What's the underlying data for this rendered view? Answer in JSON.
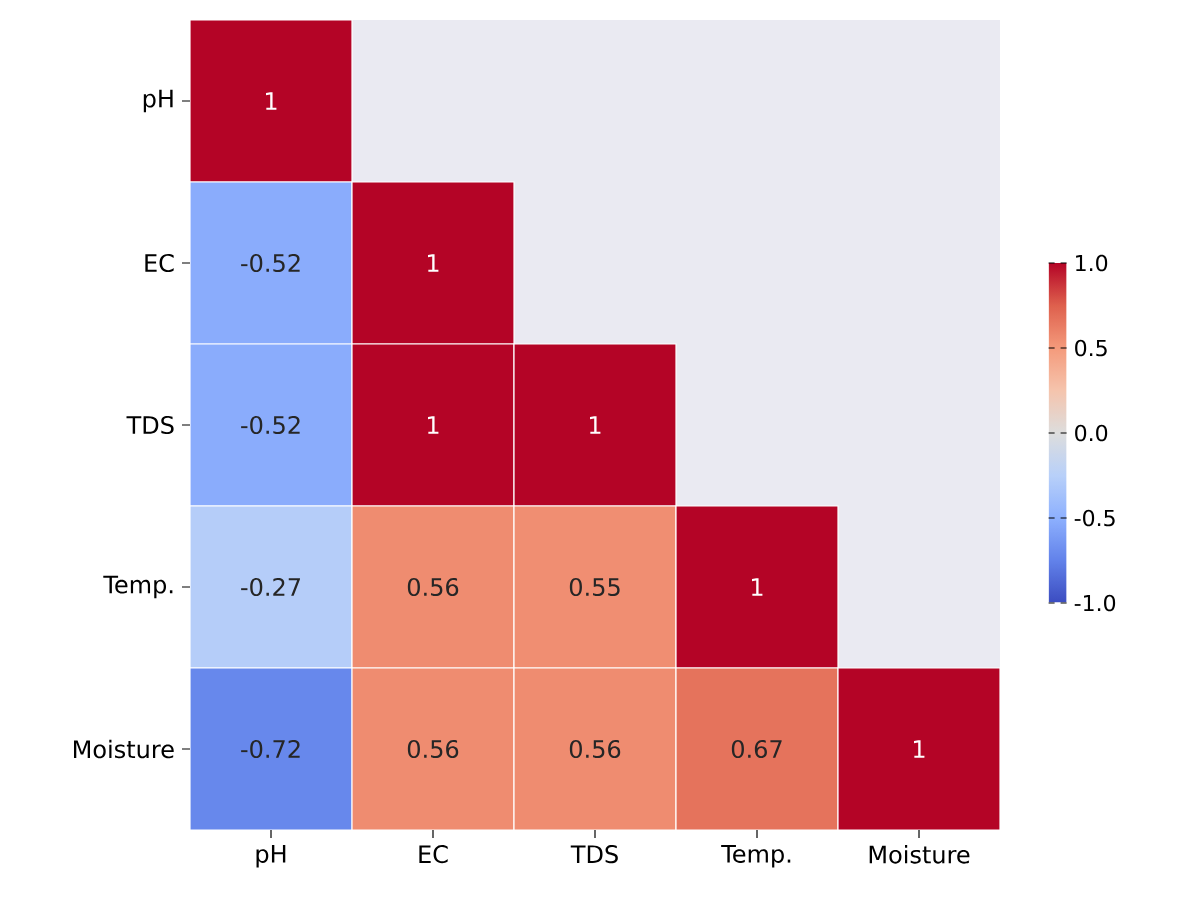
{
  "chart_data": {
    "type": "heatmap",
    "categories": [
      "pH",
      "EC",
      "TDS",
      "Temp.",
      "Moisture"
    ],
    "y_categories": [
      "pH",
      "EC",
      "TDS",
      "Temp.",
      "Moisture"
    ],
    "cells": [
      [
        1,
        null,
        null,
        null,
        null
      ],
      [
        -0.52,
        1,
        null,
        null,
        null
      ],
      [
        -0.52,
        1,
        1,
        null,
        null
      ],
      [
        -0.27,
        0.56,
        0.55,
        1,
        null
      ],
      [
        -0.72,
        0.56,
        0.56,
        0.67,
        1
      ]
    ],
    "data_labels": true,
    "clim": [
      -1,
      1
    ],
    "cticks": [
      {
        "value": -1,
        "label": "-1.0"
      },
      {
        "value": -0.5,
        "label": "-0.5"
      },
      {
        "value": 0,
        "label": "0.0"
      },
      {
        "value": 0.5,
        "label": "0.5"
      },
      {
        "value": 1,
        "label": "1.0"
      }
    ]
  }
}
